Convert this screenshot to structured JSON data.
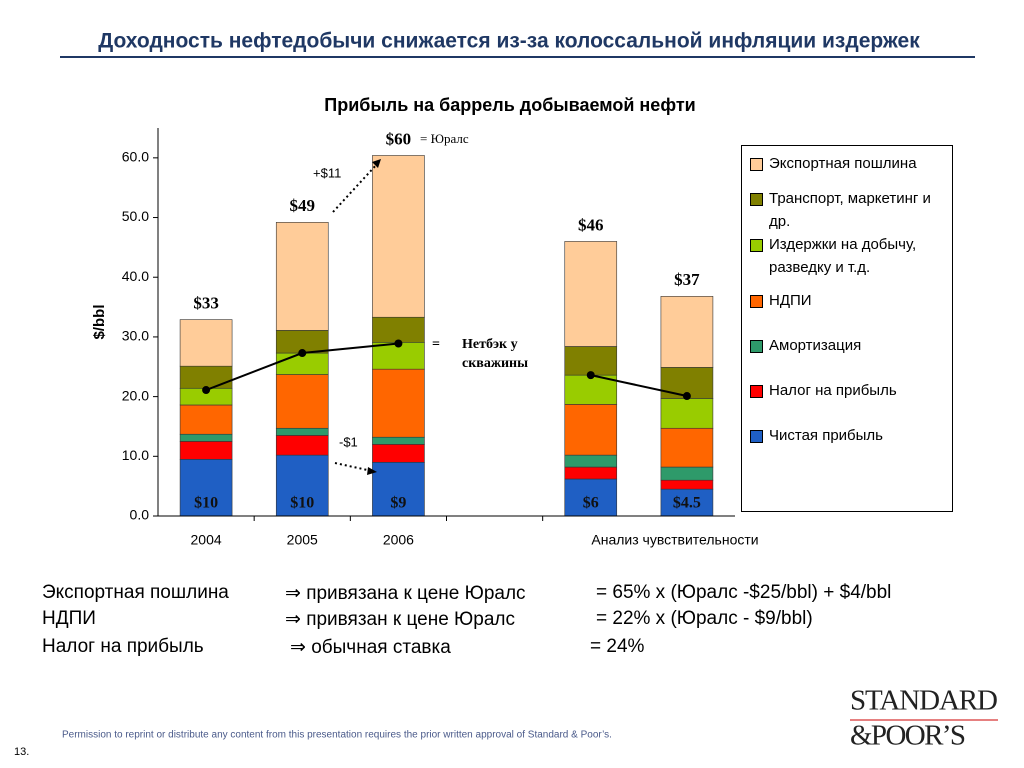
{
  "header": {
    "title": "Доходность нефтедобычи снижается из-за колоссальной инфляции издержек"
  },
  "chart_data": {
    "type": "bar",
    "stacked": true,
    "title": "Прибыль на баррель добываемой нефти",
    "y_label": "$/bbl",
    "categories": [
      "2004",
      "2005",
      "2006",
      null,
      null,
      null
    ],
    "group_label": "Анализ чувствительности",
    "ylim": [
      0,
      65
    ],
    "yticks": [
      {
        "value": 0,
        "label": "0.0"
      },
      {
        "value": 10,
        "label": "10.0"
      },
      {
        "value": 20,
        "label": "20.0"
      },
      {
        "value": 30,
        "label": "30.0"
      },
      {
        "value": 40,
        "label": "40.0"
      },
      {
        "value": 50,
        "label": "50.0"
      },
      {
        "value": 60,
        "label": "60.0"
      }
    ],
    "series": [
      {
        "name": "Чистая прибыль",
        "color": "#1f5fc4",
        "values": [
          9.5,
          10.2,
          9.0,
          null,
          6.2,
          4.5
        ],
        "value_labels": [
          "$10",
          "$10",
          "$9",
          null,
          "$6",
          "$4.5"
        ]
      },
      {
        "name": "Налог на прибыль",
        "color": "#ff0000",
        "values": [
          3.0,
          3.3,
          3.0,
          null,
          2.0,
          1.5
        ]
      },
      {
        "name": "Амортизация",
        "color": "#2e9a6a",
        "values": [
          1.2,
          1.2,
          1.2,
          null,
          2.0,
          2.2
        ]
      },
      {
        "name": "НДПИ",
        "color": "#ff6600",
        "values": [
          4.9,
          9.0,
          11.4,
          null,
          8.5,
          6.5
        ]
      },
      {
        "name": "Издержки на добычу, разведку и т.д.",
        "color": "#99cc00",
        "values": [
          2.8,
          3.6,
          4.5,
          null,
          4.9,
          5.0
        ]
      },
      {
        "name": "Транспорт, маркетинг и др.",
        "color": "#808000",
        "values": [
          3.7,
          3.8,
          4.2,
          null,
          4.8,
          5.2
        ]
      },
      {
        "name": "Экспортная пошлина",
        "color": "#ffcc99",
        "values": [
          7.8,
          18.1,
          27.1,
          null,
          17.6,
          11.9
        ]
      }
    ],
    "totals": {
      "values": [
        33,
        49,
        60,
        null,
        46,
        37
      ],
      "value_labels": [
        "$33",
        "$49",
        "$60",
        null,
        "$46",
        "$37"
      ]
    },
    "netback": {
      "name": "Нетбэк у скважины",
      "color": "#000000",
      "values": [
        21.1,
        27.3,
        28.9,
        null,
        23.6,
        20.1
      ]
    },
    "annotations": [
      "= Юралс",
      "+$11",
      "-$1",
      "="
    ]
  },
  "notes": [
    [
      "Экспортная пошлина",
      "⇒ привязана к цене Юралс",
      "= 65% х (Юралс -$25/bbl) + $4/bbl"
    ],
    [
      "НДПИ",
      "⇒ привязан к цене Юралс",
      "= 22% х (Юралс - $9/bbl)"
    ],
    [
      "Налог на прибыль",
      "⇒ обычная ставка",
      "= 24%"
    ]
  ],
  "footer": {
    "permission": "Permission to reprint or distribute any content from this presentation requires the prior written approval of Standard & Poor’s.",
    "page": "13.",
    "logo_top": "STANDARD",
    "logo_bottom": "&POOR’S"
  }
}
